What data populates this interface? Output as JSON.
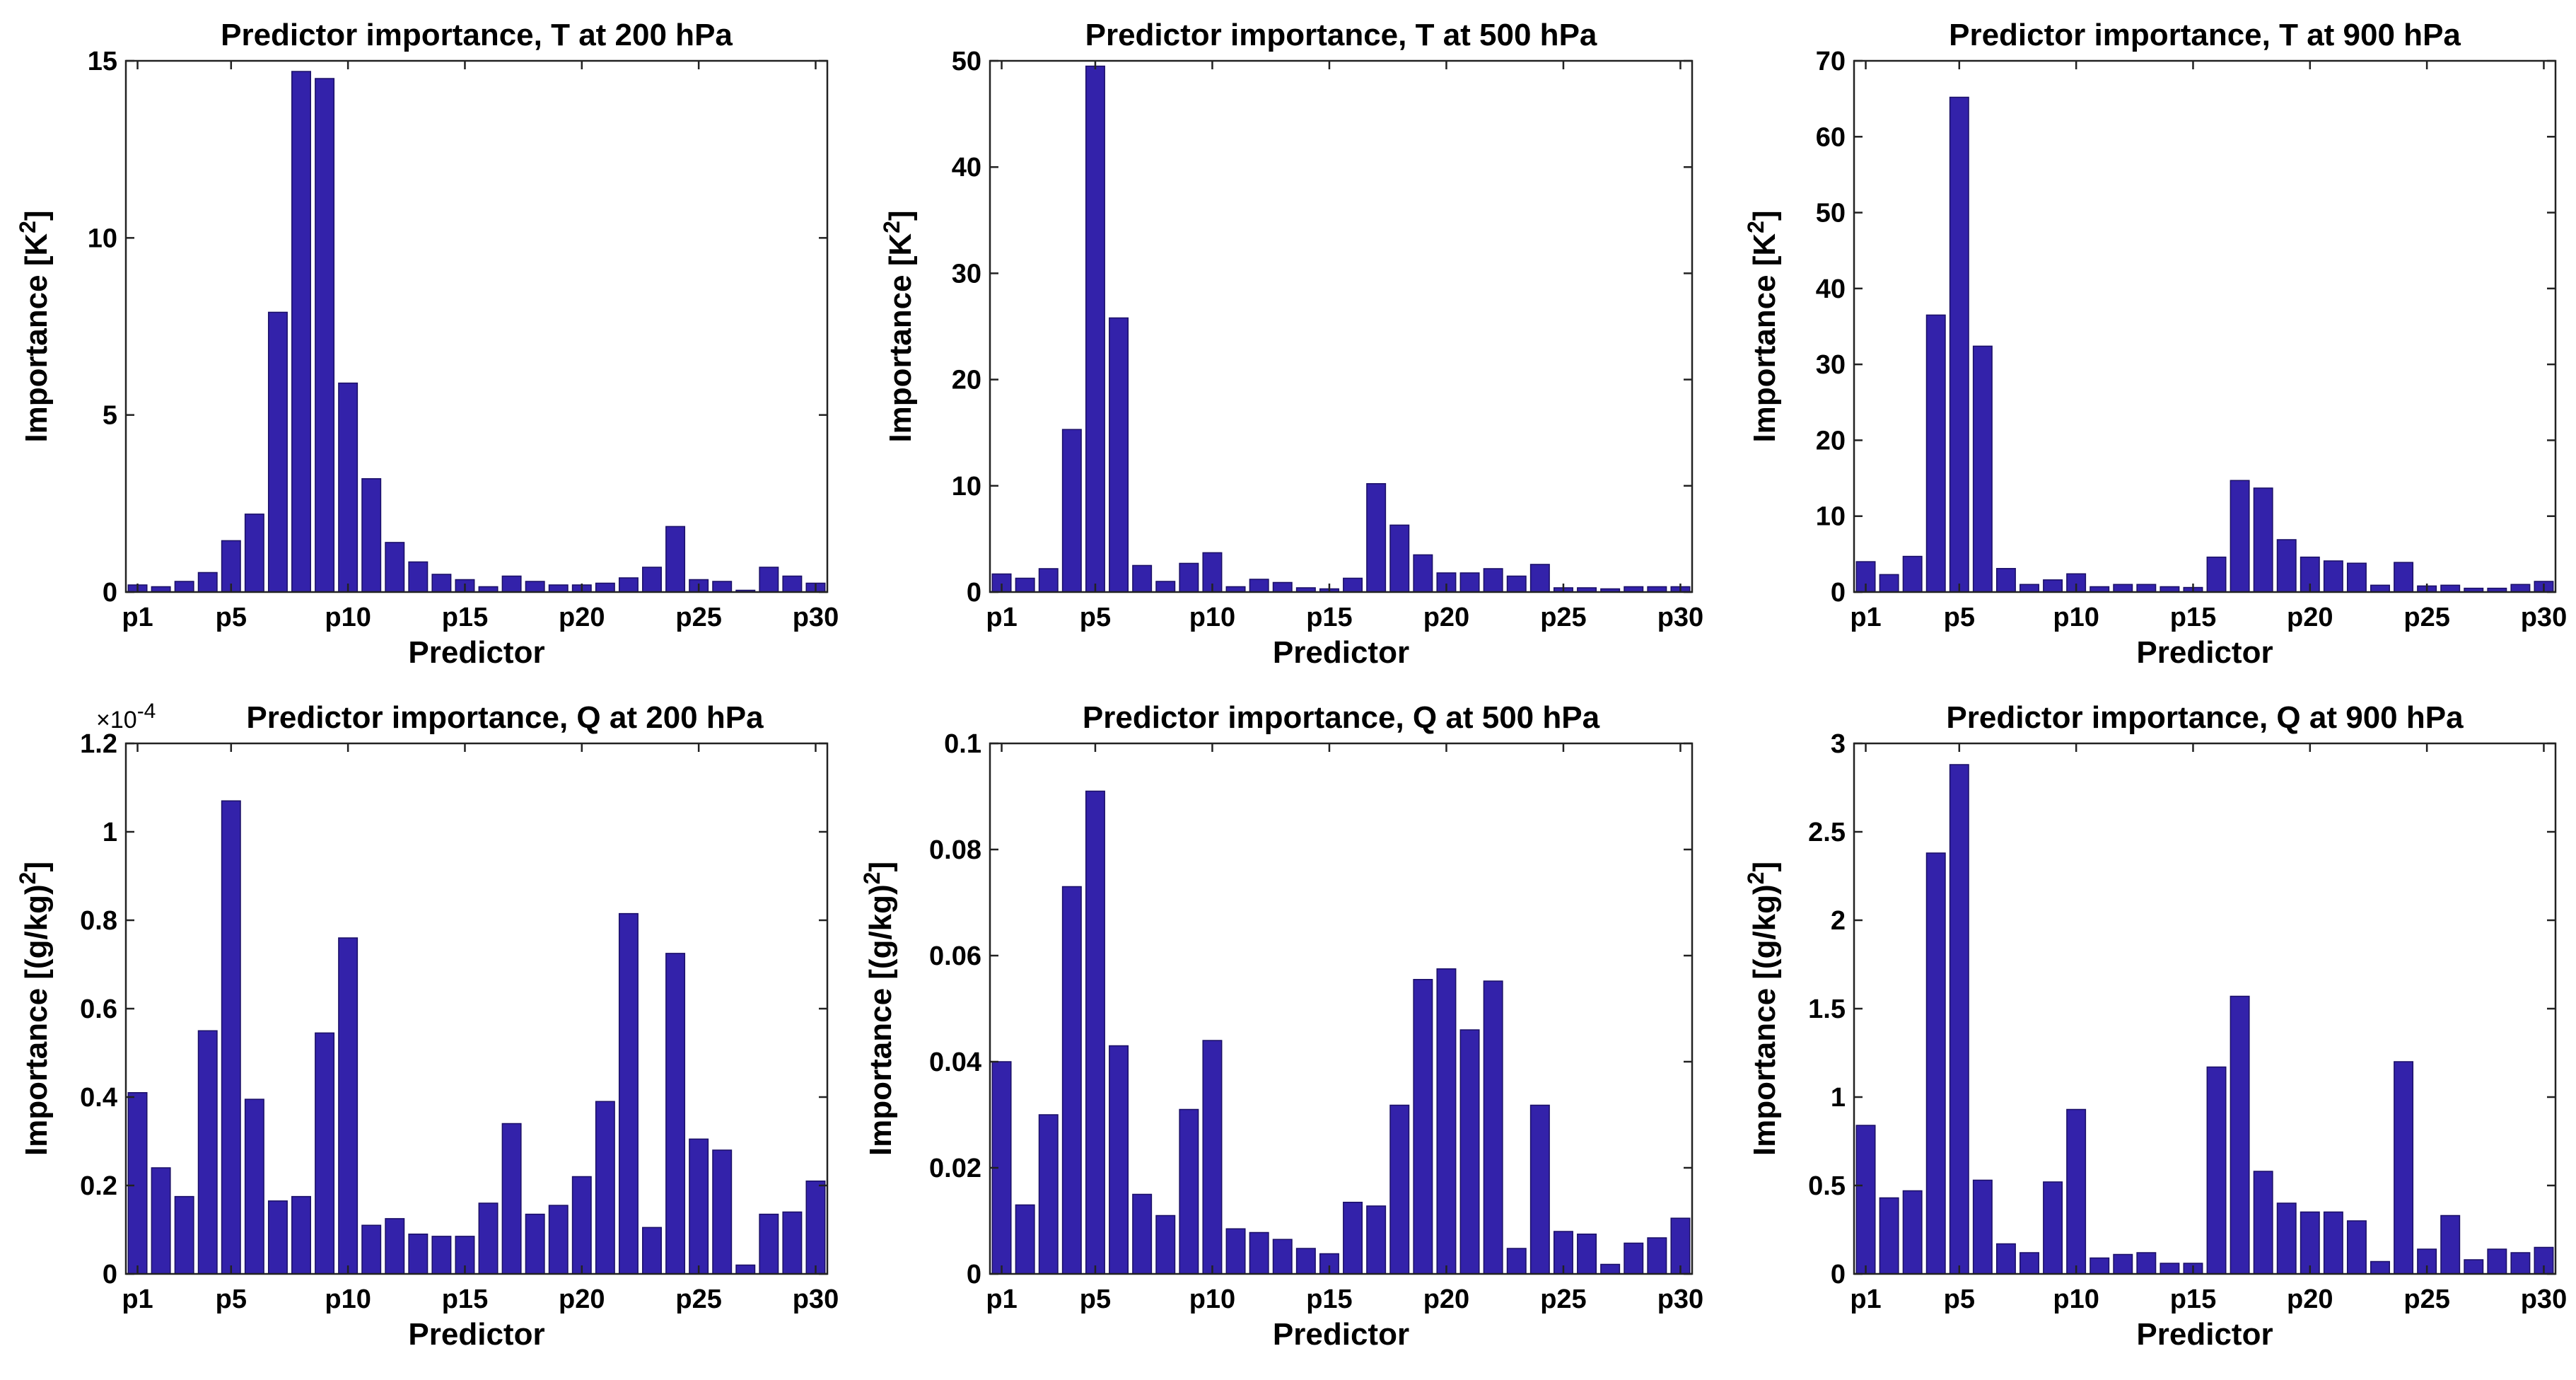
{
  "bar_color": "#3322aa",
  "chart_data": [
    {
      "type": "bar",
      "title": "Predictor importance, T at 200 hPa",
      "xlabel": "Predictor",
      "ylabel": "Importance [K",
      "ylabel_sup": "2",
      "ylabel_end": "]",
      "ylim": [
        0,
        15
      ],
      "yticks": [
        0,
        5,
        10,
        15
      ],
      "ytick_labels": [
        "0",
        "5",
        "10",
        "15"
      ],
      "xtick_labels": [
        "p1",
        "p5",
        "p10",
        "p15",
        "p20",
        "p25",
        "p30"
      ],
      "xtick_positions": [
        1,
        5,
        10,
        15,
        20,
        25,
        30
      ],
      "values": [
        0.2,
        0.15,
        0.3,
        0.55,
        1.45,
        2.2,
        7.9,
        14.7,
        14.5,
        5.9,
        3.2,
        1.4,
        0.85,
        0.5,
        0.35,
        0.15,
        0.45,
        0.3,
        0.2,
        0.2,
        0.25,
        0.4,
        0.7,
        1.85,
        0.35,
        0.3,
        0.05,
        0.7,
        0.45,
        0.25
      ]
    },
    {
      "type": "bar",
      "title": "Predictor importance, T at 500 hPa",
      "xlabel": "Predictor",
      "ylabel": "Importance [K",
      "ylabel_sup": "2",
      "ylabel_end": "]",
      "ylim": [
        0,
        50
      ],
      "yticks": [
        0,
        10,
        20,
        30,
        40,
        50
      ],
      "ytick_labels": [
        "0",
        "10",
        "20",
        "30",
        "40",
        "50"
      ],
      "xtick_labels": [
        "p1",
        "p5",
        "p10",
        "p15",
        "p20",
        "p25",
        "p30"
      ],
      "xtick_positions": [
        1,
        5,
        10,
        15,
        20,
        25,
        30
      ],
      "values": [
        1.7,
        1.3,
        2.2,
        15.3,
        49.5,
        25.8,
        2.5,
        1.0,
        2.7,
        3.7,
        0.5,
        1.2,
        0.9,
        0.4,
        0.3,
        1.3,
        10.2,
        6.3,
        3.5,
        1.8,
        1.8,
        2.2,
        1.5,
        2.6,
        0.4,
        0.4,
        0.3,
        0.5,
        0.5,
        0.5
      ]
    },
    {
      "type": "bar",
      "title": "Predictor importance, T at 900 hPa",
      "xlabel": "Predictor",
      "ylabel": "Importance [K",
      "ylabel_sup": "2",
      "ylabel_end": "]",
      "ylim": [
        0,
        70
      ],
      "yticks": [
        0,
        10,
        20,
        30,
        40,
        50,
        60,
        70
      ],
      "ytick_labels": [
        "0",
        "10",
        "20",
        "30",
        "40",
        "50",
        "60",
        "70"
      ],
      "xtick_labels": [
        "p1",
        "p5",
        "p10",
        "p15",
        "p20",
        "p25",
        "p30"
      ],
      "xtick_positions": [
        1,
        5,
        10,
        15,
        20,
        25,
        30
      ],
      "values": [
        4.0,
        2.3,
        4.7,
        36.5,
        65.2,
        32.4,
        3.1,
        1.0,
        1.6,
        2.4,
        0.7,
        1.0,
        1.0,
        0.7,
        0.6,
        4.6,
        14.7,
        13.7,
        6.9,
        4.6,
        4.1,
        3.8,
        0.9,
        3.9,
        0.8,
        0.9,
        0.5,
        0.5,
        1.0,
        1.4
      ]
    },
    {
      "type": "bar",
      "title": "Predictor importance, Q at 200 hPa",
      "exponent": "×10",
      "exponent_sup": "-4",
      "xlabel": "Predictor",
      "ylabel": "Importance [(g/kg)",
      "ylabel_sup": "2",
      "ylabel_end": "]",
      "ylim": [
        0,
        1.2
      ],
      "yticks": [
        0,
        0.2,
        0.4,
        0.6,
        0.8,
        1.0,
        1.2
      ],
      "ytick_labels": [
        "0",
        "0.2",
        "0.4",
        "0.6",
        "0.8",
        "1",
        "1.2"
      ],
      "xtick_labels": [
        "p1",
        "p5",
        "p10",
        "p15",
        "p20",
        "p25",
        "p30"
      ],
      "xtick_positions": [
        1,
        5,
        10,
        15,
        20,
        25,
        30
      ],
      "values": [
        0.41,
        0.24,
        0.175,
        0.55,
        1.07,
        0.395,
        0.165,
        0.175,
        0.545,
        0.76,
        0.11,
        0.125,
        0.09,
        0.085,
        0.085,
        0.16,
        0.34,
        0.135,
        0.155,
        0.22,
        0.39,
        0.815,
        0.105,
        0.725,
        0.305,
        0.28,
        0.02,
        0.135,
        0.14,
        0.21
      ]
    },
    {
      "type": "bar",
      "title": "Predictor importance, Q at 500 hPa",
      "xlabel": "Predictor",
      "ylabel": "Importance [(g/kg)",
      "ylabel_sup": "2",
      "ylabel_end": "]",
      "ylim": [
        0,
        0.1
      ],
      "yticks": [
        0,
        0.02,
        0.04,
        0.06,
        0.08,
        0.1
      ],
      "ytick_labels": [
        "0",
        "0.02",
        "0.04",
        "0.06",
        "0.08",
        "0.1"
      ],
      "xtick_labels": [
        "p1",
        "p5",
        "p10",
        "p15",
        "p20",
        "p25",
        "p30"
      ],
      "xtick_positions": [
        1,
        5,
        10,
        15,
        20,
        25,
        30
      ],
      "values": [
        0.04,
        0.013,
        0.03,
        0.073,
        0.091,
        0.043,
        0.015,
        0.011,
        0.031,
        0.044,
        0.0085,
        0.0078,
        0.0065,
        0.0048,
        0.0038,
        0.0135,
        0.0128,
        0.0318,
        0.0555,
        0.0575,
        0.046,
        0.0552,
        0.0048,
        0.0318,
        0.008,
        0.0075,
        0.0018,
        0.0058,
        0.0068,
        0.0105
      ]
    },
    {
      "type": "bar",
      "title": "Predictor importance, Q at 900 hPa",
      "xlabel": "Predictor",
      "ylabel": "Importance [(g/kg)",
      "ylabel_sup": "2",
      "ylabel_end": "]",
      "ylim": [
        0,
        3
      ],
      "yticks": [
        0,
        0.5,
        1,
        1.5,
        2,
        2.5,
        3
      ],
      "ytick_labels": [
        "0",
        "0.5",
        "1",
        "1.5",
        "2",
        "2.5",
        "3"
      ],
      "xtick_labels": [
        "p1",
        "p5",
        "p10",
        "p15",
        "p20",
        "p25",
        "p30"
      ],
      "xtick_positions": [
        1,
        5,
        10,
        15,
        20,
        25,
        30
      ],
      "values": [
        0.84,
        0.43,
        0.47,
        2.38,
        2.88,
        0.53,
        0.17,
        0.12,
        0.52,
        0.93,
        0.09,
        0.11,
        0.12,
        0.06,
        0.06,
        1.17,
        1.57,
        0.58,
        0.4,
        0.35,
        0.35,
        0.3,
        0.07,
        1.2,
        0.14,
        0.33,
        0.08,
        0.14,
        0.12,
        0.15
      ]
    }
  ]
}
